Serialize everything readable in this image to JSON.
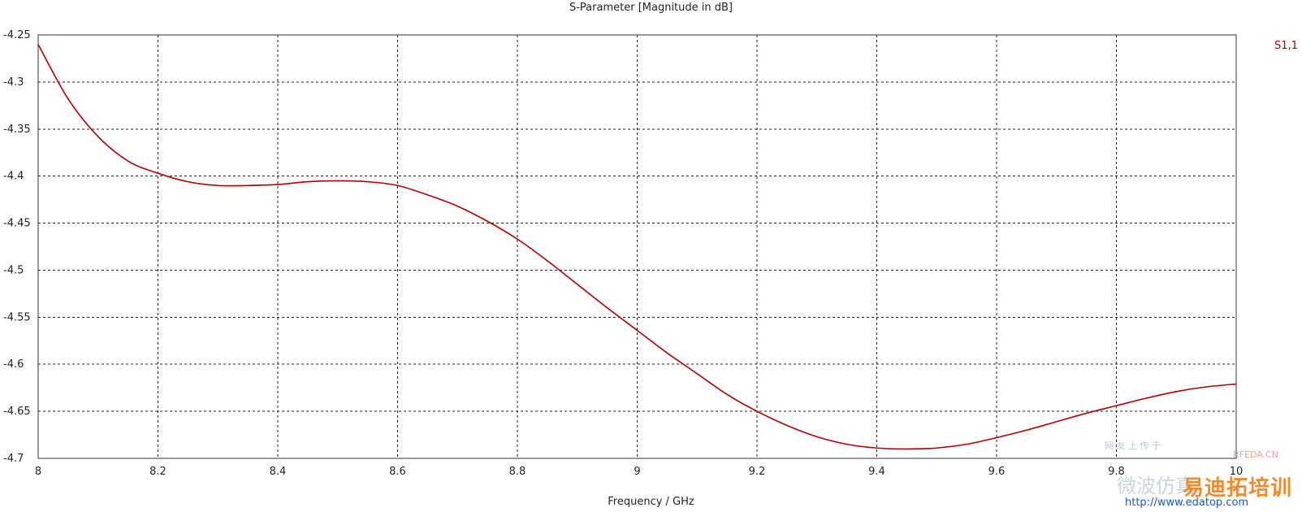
{
  "chart_data": {
    "type": "line",
    "title": "S-Parameter [Magnitude in dB]",
    "xlabel": "Frequency / GHz",
    "ylabel": "",
    "xlim": [
      8,
      10
    ],
    "ylim": [
      -4.7,
      -4.25
    ],
    "x_ticks": [
      "8",
      "8.2",
      "8.4",
      "8.6",
      "8.8",
      "9",
      "9.2",
      "9.4",
      "9.6",
      "9.8",
      "10"
    ],
    "y_ticks": [
      "-4.25",
      "-4.3",
      "-4.35",
      "-4.4",
      "-4.45",
      "-4.5",
      "-4.55",
      "-4.6",
      "-4.65",
      "-4.7"
    ],
    "grid": true,
    "legend_position": "top-right",
    "series": [
      {
        "name": "S1,1",
        "color": "#b00000",
        "x": [
          8.0,
          8.05,
          8.1,
          8.15,
          8.2,
          8.25,
          8.3,
          8.35,
          8.4,
          8.45,
          8.5,
          8.55,
          8.6,
          8.65,
          8.7,
          8.75,
          8.8,
          8.85,
          8.9,
          8.95,
          9.0,
          9.05,
          9.1,
          9.15,
          9.2,
          9.25,
          9.3,
          9.35,
          9.4,
          9.45,
          9.5,
          9.55,
          9.6,
          9.65,
          9.7,
          9.75,
          9.8,
          9.85,
          9.9,
          9.95,
          10.0
        ],
        "y": [
          -4.26,
          -4.318,
          -4.358,
          -4.384,
          -4.397,
          -4.406,
          -4.41,
          -4.41,
          -4.409,
          -4.406,
          -4.405,
          -4.406,
          -4.41,
          -4.42,
          -4.432,
          -4.448,
          -4.467,
          -4.49,
          -4.515,
          -4.54,
          -4.564,
          -4.588,
          -4.61,
          -4.632,
          -4.65,
          -4.665,
          -4.677,
          -4.685,
          -4.689,
          -4.69,
          -4.689,
          -4.685,
          -4.678,
          -4.67,
          -4.661,
          -4.652,
          -4.644,
          -4.636,
          -4.629,
          -4.624,
          -4.621
        ]
      }
    ]
  },
  "watermark": {
    "site": "RFEDA.CN",
    "cn_text": "易迪拓培训",
    "url": "http://www.edatop.com",
    "faint_text": "微波仿真"
  }
}
